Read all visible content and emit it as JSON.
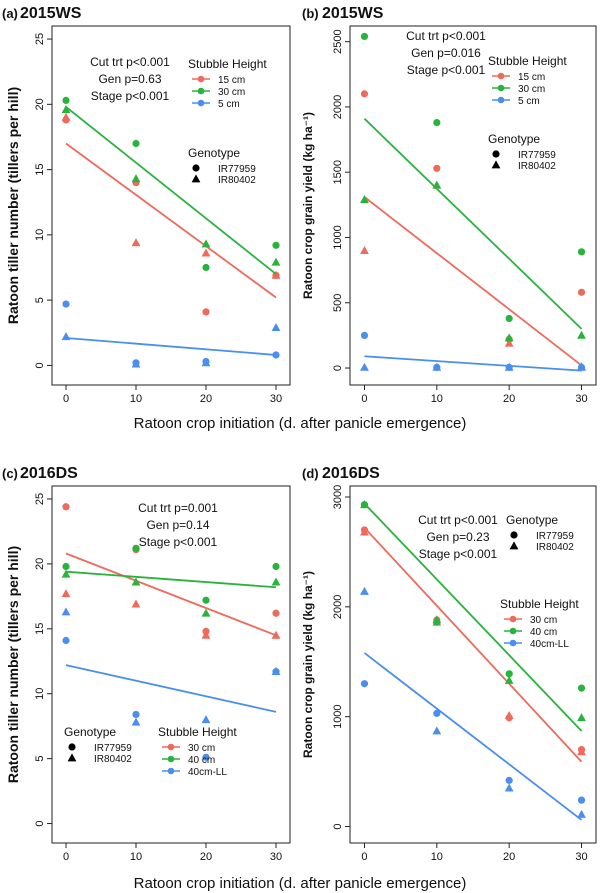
{
  "figure": {
    "xlabel_top": "Ratoon crop initiation (d. after panicle emergence)",
    "xlabel_bottom": "Ratoon crop initiation (d. after panicle emergence)"
  },
  "colors": {
    "red": "#ee6a5b",
    "green": "#28b43c",
    "blue": "#4a8ef0",
    "black": "#000000"
  },
  "genotype_legend": {
    "title": "Genotype",
    "labels": [
      "IR77959",
      "IR80402"
    ],
    "markers": [
      "circle",
      "triangle"
    ]
  },
  "chart_data": [
    {
      "panel": "(a)",
      "season": "2015WS",
      "type": "scatter",
      "ylabel": "Ratoon tiller number (tillers per hill)",
      "xlim": [
        -2,
        32
      ],
      "ylim": [
        -1.5,
        26
      ],
      "xticks": [
        0,
        10,
        20,
        30
      ],
      "yticks": [
        0,
        5,
        10,
        15,
        20,
        25
      ],
      "stats": [
        "Cut trt p<0.001",
        "Gen p=0.63",
        "Stage p<0.001"
      ],
      "legend_title": "Stubble Height",
      "series": [
        {
          "name": "15 cm",
          "color": "#ee6a5b",
          "IR77959": [
            [
              0,
              18.8
            ],
            [
              10,
              14.0
            ],
            [
              20,
              4.1
            ],
            [
              30,
              6.9
            ]
          ],
          "IR80402": [
            [
              0,
              19.0
            ],
            [
              10,
              9.4
            ],
            [
              20,
              8.6
            ],
            [
              30,
              6.9
            ]
          ],
          "fit": [
            [
              0,
              17.0
            ],
            [
              30,
              5.2
            ]
          ]
        },
        {
          "name": "30 cm",
          "color": "#28b43c",
          "IR77959": [
            [
              0,
              20.3
            ],
            [
              10,
              17.0
            ],
            [
              20,
              7.5
            ],
            [
              30,
              9.2
            ]
          ],
          "IR80402": [
            [
              0,
              19.6
            ],
            [
              10,
              14.3
            ],
            [
              20,
              9.3
            ],
            [
              30,
              7.9
            ]
          ],
          "fit": [
            [
              0,
              19.8
            ],
            [
              30,
              7.0
            ]
          ]
        },
        {
          "name": "5 cm",
          "color": "#4a8ef0",
          "IR77959": [
            [
              0,
              4.7
            ],
            [
              10,
              0.2
            ],
            [
              20,
              0.3
            ],
            [
              30,
              0.8
            ]
          ],
          "IR80402": [
            [
              0,
              2.2
            ],
            [
              10,
              0.1
            ],
            [
              20,
              0.2
            ],
            [
              30,
              2.9
            ]
          ],
          "fit": [
            [
              0,
              2.1
            ],
            [
              30,
              0.8
            ]
          ]
        }
      ]
    },
    {
      "panel": "(b)",
      "season": "2015WS",
      "type": "scatter",
      "ylabel": "Ratoon crop grain yield (kg ha⁻¹)",
      "xlim": [
        -2,
        32
      ],
      "ylim": [
        -130,
        2620
      ],
      "xticks": [
        0,
        10,
        20,
        30
      ],
      "yticks": [
        0,
        500,
        1000,
        1500,
        2000,
        2500
      ],
      "stats": [
        "Cut trt p<0.001",
        "Gen p=0.016",
        "Stage p<0.001"
      ],
      "legend_title": "Stubble Height",
      "series": [
        {
          "name": "15 cm",
          "color": "#ee6a5b",
          "IR77959": [
            [
              0,
              2100
            ],
            [
              10,
              1530
            ],
            [
              20,
              220
            ],
            [
              30,
              580
            ]
          ],
          "IR80402": [
            [
              0,
              900
            ],
            [
              10,
              1400
            ],
            [
              20,
              190
            ],
            [
              30,
              10
            ]
          ],
          "fit": [
            [
              0,
              1310
            ],
            [
              30,
              20
            ]
          ]
        },
        {
          "name": "30 cm",
          "color": "#28b43c",
          "IR77959": [
            [
              0,
              2540
            ],
            [
              10,
              1880
            ],
            [
              20,
              380
            ],
            [
              30,
              890
            ]
          ],
          "IR80402": [
            [
              0,
              1290
            ],
            [
              10,
              1400
            ],
            [
              20,
              230
            ],
            [
              30,
              250
            ]
          ],
          "fit": [
            [
              0,
              1910
            ],
            [
              30,
              300
            ]
          ]
        },
        {
          "name": "5 cm",
          "color": "#4a8ef0",
          "IR77959": [
            [
              0,
              250
            ],
            [
              10,
              5
            ],
            [
              20,
              5
            ],
            [
              30,
              5
            ]
          ],
          "IR80402": [
            [
              0,
              5
            ],
            [
              10,
              5
            ],
            [
              20,
              5
            ],
            [
              30,
              5
            ]
          ],
          "fit": [
            [
              0,
              90
            ],
            [
              30,
              -20
            ]
          ]
        }
      ]
    },
    {
      "panel": "(c)",
      "season": "2016DS",
      "type": "scatter",
      "ylabel": "Ratoon tiller number (tillers per hill)",
      "xlim": [
        -2,
        32
      ],
      "ylim": [
        -1.5,
        26
      ],
      "xticks": [
        0,
        10,
        20,
        30
      ],
      "yticks": [
        0,
        5,
        10,
        15,
        20,
        25
      ],
      "stats": [
        "Cut trt p=0.001",
        "Gen p=0.14",
        "Stage p<0.001"
      ],
      "legend_title": "Stubble Height",
      "series": [
        {
          "name": "30 cm",
          "color": "#ee6a5b",
          "IR77959": [
            [
              0,
              24.4
            ],
            [
              10,
              21.1
            ],
            [
              20,
              14.8
            ],
            [
              30,
              16.2
            ]
          ],
          "IR80402": [
            [
              0,
              17.7
            ],
            [
              10,
              16.9
            ],
            [
              20,
              14.5
            ],
            [
              30,
              14.5
            ]
          ],
          "fit": [
            [
              0,
              20.8
            ],
            [
              30,
              14.5
            ]
          ]
        },
        {
          "name": "40 cm",
          "color": "#28b43c",
          "IR77959": [
            [
              0,
              19.8
            ],
            [
              10,
              21.2
            ],
            [
              20,
              17.2
            ],
            [
              30,
              19.8
            ]
          ],
          "IR80402": [
            [
              0,
              19.2
            ],
            [
              10,
              18.6
            ],
            [
              20,
              16.2
            ],
            [
              30,
              18.6
            ]
          ],
          "fit": [
            [
              0,
              19.4
            ],
            [
              30,
              18.2
            ]
          ]
        },
        {
          "name": "40cm-LL",
          "color": "#4a8ef0",
          "IR77959": [
            [
              0,
              14.1
            ],
            [
              10,
              8.4
            ],
            [
              20,
              5.1
            ],
            [
              30,
              11.7
            ]
          ],
          "IR80402": [
            [
              0,
              16.3
            ],
            [
              10,
              7.8
            ],
            [
              20,
              8.0
            ],
            [
              30,
              11.7
            ]
          ],
          "fit": [
            [
              0,
              12.2
            ],
            [
              30,
              8.6
            ]
          ]
        }
      ]
    },
    {
      "panel": "(d)",
      "season": "2016DS",
      "type": "scatter",
      "ylabel": "Ratoon crop grain yield (kg ha⁻¹)",
      "xlim": [
        -2,
        32
      ],
      "ylim": [
        -150,
        3100
      ],
      "xticks": [
        0,
        10,
        20,
        30
      ],
      "yticks": [
        0,
        1000,
        2000,
        3000
      ],
      "stats": [
        "Cut trt p<0.001",
        "Gen p=0.23",
        "Stage p<0.001"
      ],
      "legend_title": "Stubble Height",
      "series": [
        {
          "name": "30 cm",
          "color": "#ee6a5b",
          "IR77959": [
            [
              0,
              2700
            ],
            [
              10,
              1880
            ],
            [
              20,
              990
            ],
            [
              30,
              700
            ]
          ],
          "IR80402": [
            [
              0,
              2680
            ],
            [
              10,
              1860
            ],
            [
              20,
              1010
            ],
            [
              30,
              680
            ]
          ],
          "fit": [
            [
              0,
              2720
            ],
            [
              30,
              590
            ]
          ]
        },
        {
          "name": "40 cm",
          "color": "#28b43c",
          "IR77959": [
            [
              0,
              2930
            ],
            [
              10,
              1860
            ],
            [
              20,
              1390
            ],
            [
              30,
              1260
            ]
          ],
          "IR80402": [
            [
              0,
              2930
            ],
            [
              10,
              1880
            ],
            [
              20,
              1330
            ],
            [
              30,
              990
            ]
          ],
          "fit": [
            [
              0,
              2940
            ],
            [
              30,
              870
            ]
          ]
        },
        {
          "name": "40cm-LL",
          "color": "#4a8ef0",
          "IR77959": [
            [
              0,
              1300
            ],
            [
              10,
              1030
            ],
            [
              20,
              420
            ],
            [
              30,
              240
            ]
          ],
          "IR80402": [
            [
              0,
              2140
            ],
            [
              10,
              870
            ],
            [
              20,
              350
            ],
            [
              30,
              110
            ]
          ],
          "fit": [
            [
              0,
              1580
            ],
            [
              30,
              60
            ]
          ]
        }
      ]
    }
  ]
}
